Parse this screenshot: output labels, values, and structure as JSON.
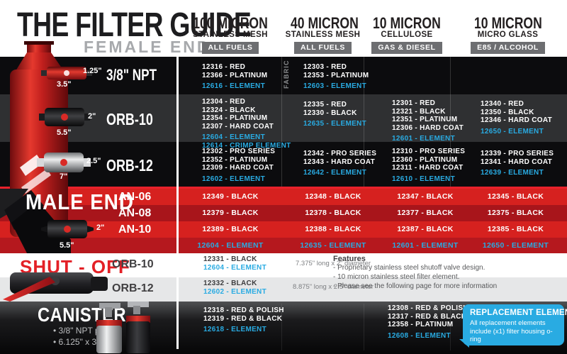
{
  "colors": {
    "accent_red": "#e32026",
    "element_blue": "#29abe2",
    "badge_gray": "#6d6e71"
  },
  "header": {
    "title": "THE FILTER GUIDE",
    "subtitle": "FEMALE END",
    "columns": [
      {
        "micron": "100 MICRON",
        "media": "STAINLESS MESH",
        "badge": "ALL FUELS"
      },
      {
        "micron": "40 MICRON",
        "media": "STAINLESS MESH",
        "badge": "ALL FUELS"
      },
      {
        "micron": "10 MICRON",
        "media": "CELLULOSE",
        "badge": "GAS & DIESEL"
      },
      {
        "micron": "10 MICRON",
        "media": "MICRO GLASS",
        "badge": "E85 / ALCOHOL"
      }
    ]
  },
  "female": {
    "rows": [
      {
        "label": "3/8\" NPT",
        "dims": {
          "height": "1.25\"",
          "length": "3.5\""
        },
        "fabric_note": "FABRIC",
        "cells": [
          {
            "parts": [
              "12316 - RED",
              "12366 - PLATINUM"
            ],
            "elements": [
              "12616 - ELEMENT"
            ]
          },
          {
            "parts": [
              "12303 - RED",
              "12353 - PLATINUM"
            ],
            "elements": [
              "12603 - ELEMENT"
            ]
          },
          {
            "parts": [],
            "elements": []
          },
          {
            "parts": [],
            "elements": []
          }
        ]
      },
      {
        "label": "ORB-10",
        "dims": {
          "height": "2\"",
          "length": "5.5\""
        },
        "cells": [
          {
            "parts": [
              "12304 - RED",
              "12324 - BLACK",
              "12354 - PLATINUM",
              "12307 - HARD COAT"
            ],
            "elements": [
              "12604 - ELEMENT",
              "12614 - CRIMP ELEMENT"
            ]
          },
          {
            "parts": [
              "12335 - RED",
              "12330 - BLACK"
            ],
            "elements": [
              "12635 - ELEMENT"
            ]
          },
          {
            "parts": [
              "12301 - RED",
              "12321 - BLACK",
              "12351 - PLATINUM",
              "12306 - HARD COAT"
            ],
            "elements": [
              "12601 - ELEMENT"
            ]
          },
          {
            "parts": [
              "12340 - RED",
              "12350 - BLACK",
              "12346 - HARD COAT"
            ],
            "elements": [
              "12650 - ELEMENT"
            ]
          }
        ]
      },
      {
        "label": "ORB-12",
        "dims": {
          "height": "2.5\"",
          "length": "7\""
        },
        "cells": [
          {
            "parts": [
              "12302 - PRO SERIES",
              "12352 - PLATINUM",
              "12309 - HARD COAT"
            ],
            "elements": [
              "12602 - ELEMENT"
            ]
          },
          {
            "parts": [
              "12342 - PRO SERIES",
              "12343 - HARD COAT"
            ],
            "elements": [
              "12642 - ELEMENT"
            ]
          },
          {
            "parts": [
              "12310 - PRO SERIES",
              "12360 - PLATINUM",
              "12311 - HARD COAT"
            ],
            "elements": [
              "12610 - ELEMENT"
            ]
          },
          {
            "parts": [
              "12339 - PRO SERIES",
              "12341 - HARD COAT"
            ],
            "elements": [
              "12639 - ELEMENT"
            ]
          }
        ]
      }
    ]
  },
  "male": {
    "title": "MALE END",
    "dims": {
      "height": "2\"",
      "length": "5.5\""
    },
    "rows": [
      {
        "label": "AN-06",
        "cells": [
          "12349 - BLACK",
          "12348 - BLACK",
          "12347 - BLACK",
          "12345 - BLACK"
        ]
      },
      {
        "label": "AN-08",
        "cells": [
          "12379 - BLACK",
          "12378 - BLACK",
          "12377 - BLACK",
          "12375 - BLACK"
        ]
      },
      {
        "label": "AN-10",
        "cells": [
          "12389 - BLACK",
          "12388 - BLACK",
          "12387 - BLACK",
          "12385 - BLACK"
        ]
      }
    ],
    "element_cells": [
      "12604 - ELEMENT",
      "12635 - ELEMENT",
      "12601 - ELEMENT",
      "12650 - ELEMENT"
    ]
  },
  "shutoff": {
    "title": "SHUT - OFF",
    "rows": [
      {
        "label": "ORB-10",
        "part": "12331 - BLACK",
        "element": "12604 - ELEMENT",
        "dimension": "7.375\" long x 2\" diameter"
      },
      {
        "label": "ORB-12",
        "part": "12332 - BLACK",
        "element": "12602 - ELEMENT",
        "dimension": "8.875\" long x 2.5\" diameter"
      }
    ],
    "features": {
      "heading": "Features",
      "items": [
        "- Proprietary stainless steel shutoff valve design.",
        "- 10 micron stainless steel filter element.",
        "- Please see the following page for more information"
      ]
    }
  },
  "canister": {
    "title": "CANISTER",
    "bullets": [
      "• 3/8\" NPT ports.",
      "• 6.125\" x 3.75\""
    ],
    "col1": {
      "parts": [
        "12318 - RED & POLISH",
        "12319 - RED & BLACK"
      ],
      "elements": [
        "12618 - ELEMENT"
      ]
    },
    "col3": {
      "parts": [
        "12308 - RED & POLISH",
        "12317 - RED & BLACK",
        "12358 - PLATINUM"
      ],
      "elements": [
        "12608 - ELEMENT"
      ]
    },
    "callout": {
      "title": "REPLACEMENT ELEMENTS",
      "body": [
        "All replacement elements",
        "include (x1) filter housing o-ring"
      ]
    }
  }
}
